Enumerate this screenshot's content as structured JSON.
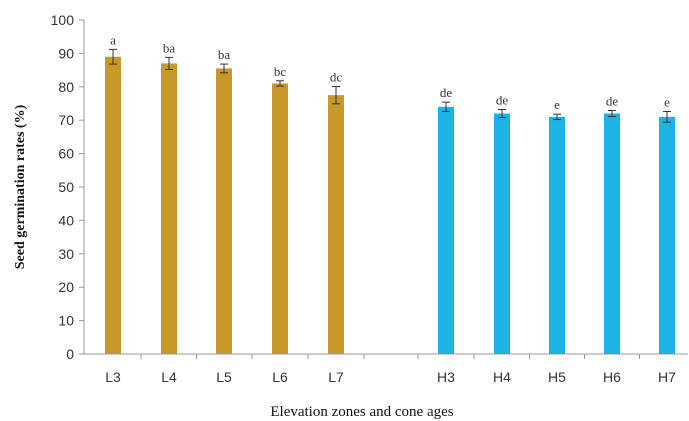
{
  "chart_data": {
    "type": "bar",
    "categories": [
      "L3",
      "L4",
      "L5",
      "L6",
      "L7",
      "H3",
      "H4",
      "H5",
      "H6",
      "H7"
    ],
    "values": [
      89,
      87,
      85.5,
      81,
      77.5,
      74,
      72,
      71,
      72,
      71
    ],
    "errors": [
      2.2,
      1.8,
      1.3,
      0.8,
      2.6,
      1.4,
      1.2,
      0.8,
      0.9,
      1.6
    ],
    "letters": [
      "a",
      "ba",
      "ba",
      "bc",
      "dc",
      "de",
      "de",
      "e",
      "de",
      "e"
    ],
    "bar_colors": [
      "#C9982B",
      "#C9982B",
      "#C9982B",
      "#C9982B",
      "#C9982B",
      "#1DB3E6",
      "#1DB3E6",
      "#1DB3E6",
      "#1DB3E6",
      "#1DB3E6"
    ],
    "title": "",
    "xlabel": "Elevation zones and cone ages",
    "ylabel": "Seed germination rates (%)",
    "ylim": [
      0,
      100
    ],
    "yticks": [
      0,
      10,
      20,
      30,
      40,
      50,
      60,
      70,
      80,
      90,
      100
    ],
    "grid": false,
    "legend": "none"
  }
}
